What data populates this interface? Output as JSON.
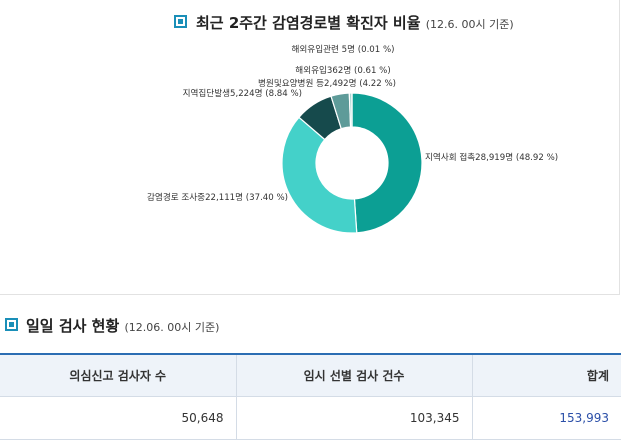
{
  "chart_section": {
    "title": "최근 2주간 감염경로별 확진자 비율",
    "subtitle": "(12.6. 00시 기준)"
  },
  "chart_data": {
    "type": "pie",
    "donut": true,
    "title": "최근 2주간 감염경로별 확진자 비율",
    "slices": [
      {
        "label": "지역사회 접촉28,919명 (48.92 %)",
        "count": 28919,
        "value": 48.92,
        "color": "#0c9f94"
      },
      {
        "label": "감염경로 조사중22,111명 (37.40 %)",
        "count": 22111,
        "value": 37.4,
        "color": "#44d1c9"
      },
      {
        "label": "지역집단발생5,224명 (8.84 %)",
        "count": 5224,
        "value": 8.84,
        "color": "#164a4c"
      },
      {
        "label": "병원및요양병원 등2,492명 (4.22 %)",
        "count": 2492,
        "value": 4.22,
        "color": "#5e9b99"
      },
      {
        "label": "해외유입362명 (0.61 %)",
        "count": 362,
        "value": 0.61,
        "color": "#a9d6d2"
      },
      {
        "label": "해외유입관련 5명 (0.01 %)",
        "count": 5,
        "value": 0.01,
        "color": "#7fb4b0"
      }
    ]
  },
  "test_section": {
    "title": "일일 검사 현황",
    "subtitle": "(12.06. 00시 기준)",
    "headers": [
      "의심신고 검사자 수",
      "임시 선별 검사 건수",
      "합계"
    ],
    "values": [
      "50,648",
      "103,345",
      "153,993"
    ]
  }
}
